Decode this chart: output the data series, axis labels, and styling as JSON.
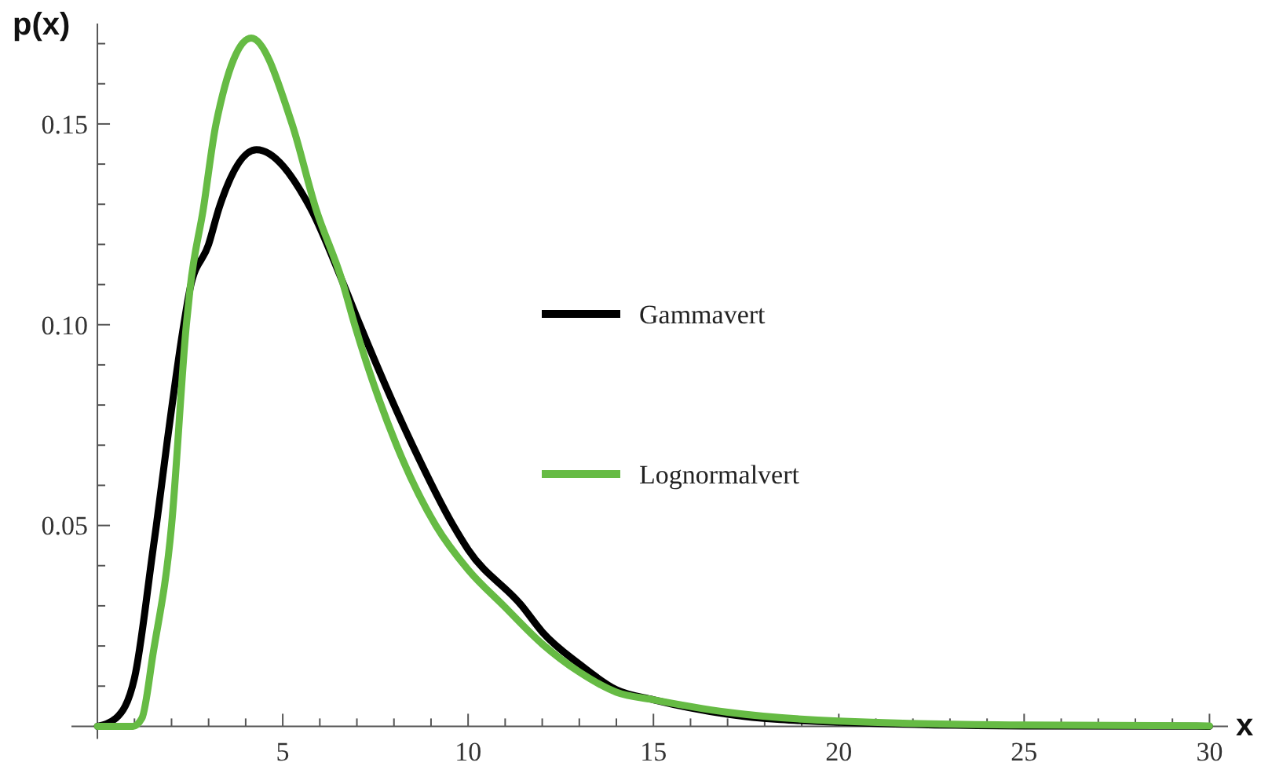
{
  "chart_data": {
    "type": "line",
    "xlabel": "x",
    "ylabel": "p(x)",
    "xlim": [
      -0.7,
      30.5
    ],
    "ylim": [
      0,
      0.175
    ],
    "xticks": [
      {
        "value": 1,
        "label": null
      },
      {
        "value": 2,
        "label": null
      },
      {
        "value": 3,
        "label": null
      },
      {
        "value": 4,
        "label": null
      },
      5,
      {
        "value": 6,
        "label": null
      },
      {
        "value": 7,
        "label": null
      },
      {
        "value": 8,
        "label": null
      },
      {
        "value": 9,
        "label": null
      },
      10,
      {
        "value": 11,
        "label": null
      },
      {
        "value": 12,
        "label": null
      },
      {
        "value": 13,
        "label": null
      },
      {
        "value": 14,
        "label": null
      },
      15,
      {
        "value": 16,
        "label": null
      },
      {
        "value": 17,
        "label": null
      },
      {
        "value": 18,
        "label": null
      },
      {
        "value": 19,
        "label": null
      },
      20,
      {
        "value": 21,
        "label": null
      },
      {
        "value": 22,
        "label": null
      },
      {
        "value": 23,
        "label": null
      },
      {
        "value": 24,
        "label": null
      },
      25,
      {
        "value": 26,
        "label": null
      },
      {
        "value": 27,
        "label": null
      },
      {
        "value": 28,
        "label": null
      },
      {
        "value": 29,
        "label": null
      },
      30
    ],
    "yticks": [
      {
        "value": 0.01,
        "label": null
      },
      {
        "value": 0.02,
        "label": null
      },
      {
        "value": 0.03,
        "label": null
      },
      {
        "value": 0.04,
        "label": null
      },
      0.05,
      {
        "value": 0.06,
        "label": null
      },
      {
        "value": 0.07,
        "label": null
      },
      {
        "value": 0.08,
        "label": null
      },
      {
        "value": 0.09,
        "label": null
      },
      {
        "value": 0.1,
        "label": "0.10"
      },
      {
        "value": 0.11,
        "label": null
      },
      {
        "value": 0.12,
        "label": null
      },
      {
        "value": 0.13,
        "label": null
      },
      {
        "value": 0.14,
        "label": null
      },
      0.15,
      {
        "value": 0.16,
        "label": null
      },
      {
        "value": 0.17,
        "label": null
      }
    ],
    "grid": false,
    "legend": "right",
    "marker": "none",
    "line_style": "solid",
    "series": [
      {
        "name": "Gammavert",
        "color": "#000000",
        "x": [
          0,
          0.5,
          1,
          1.5,
          1.59,
          1.87,
          2.33,
          2.5,
          3,
          3.28,
          4.29,
          5.75,
          6.6,
          7.08,
          8.5,
          9.6,
          10,
          11.45,
          12,
          13,
          14,
          15,
          17,
          20,
          25,
          30
        ],
        "values": [
          0,
          0.002,
          0.012,
          0.044,
          0.05,
          0.07,
          0.1,
          0.109,
          0.12,
          0.129,
          0.1436,
          0.129,
          0.111,
          0.1,
          0.07,
          0.05,
          0.044,
          0.03,
          0.0235,
          0.0155,
          0.0091,
          0.0066,
          0.003,
          0.001,
          0.0001,
          0
        ]
      },
      {
        "name": "Lognormalvert",
        "color": "#66bb44",
        "x": [
          0,
          0.96,
          1.2,
          1.5,
          2,
          2.4,
          2.5,
          2.86,
          3.2,
          4.15,
          5.25,
          5.89,
          6.6,
          6.94,
          8.07,
          9.13,
          10,
          10.96,
          12,
          13,
          14,
          15,
          17,
          20,
          25,
          30
        ],
        "values": [
          0,
          0,
          0.002,
          0.018,
          0.05,
          0.1,
          0.109,
          0.129,
          0.15,
          0.1714,
          0.15,
          0.129,
          0.111,
          0.1,
          0.07,
          0.05,
          0.039,
          0.03,
          0.0205,
          0.0135,
          0.0085,
          0.0066,
          0.0035,
          0.0013,
          0.0003,
          0.0001
        ]
      }
    ]
  }
}
